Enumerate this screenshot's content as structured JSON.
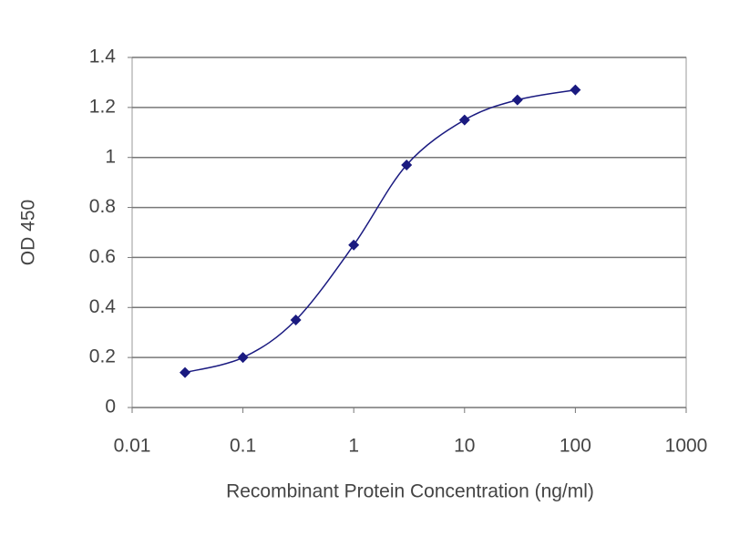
{
  "chart_data": {
    "type": "line",
    "x_label": "Recombinant Protein Concentration (ng/ml)",
    "y_label": "OD 450",
    "x": [
      0.03,
      0.1,
      0.3,
      1,
      3,
      10,
      30,
      100
    ],
    "values": [
      0.14,
      0.2,
      0.35,
      0.65,
      0.97,
      1.15,
      1.23,
      1.27
    ],
    "color": "#1a1a80",
    "log_x": true,
    "xlim": [
      0.01,
      1000
    ],
    "xticks": [
      0.01,
      0.1,
      1,
      10,
      100,
      1000
    ],
    "ylim": [
      0,
      1.4
    ],
    "yticks": [
      0,
      0.2,
      0.4,
      0.6,
      0.8,
      1,
      1.2,
      1.4
    ],
    "grid": true
  }
}
